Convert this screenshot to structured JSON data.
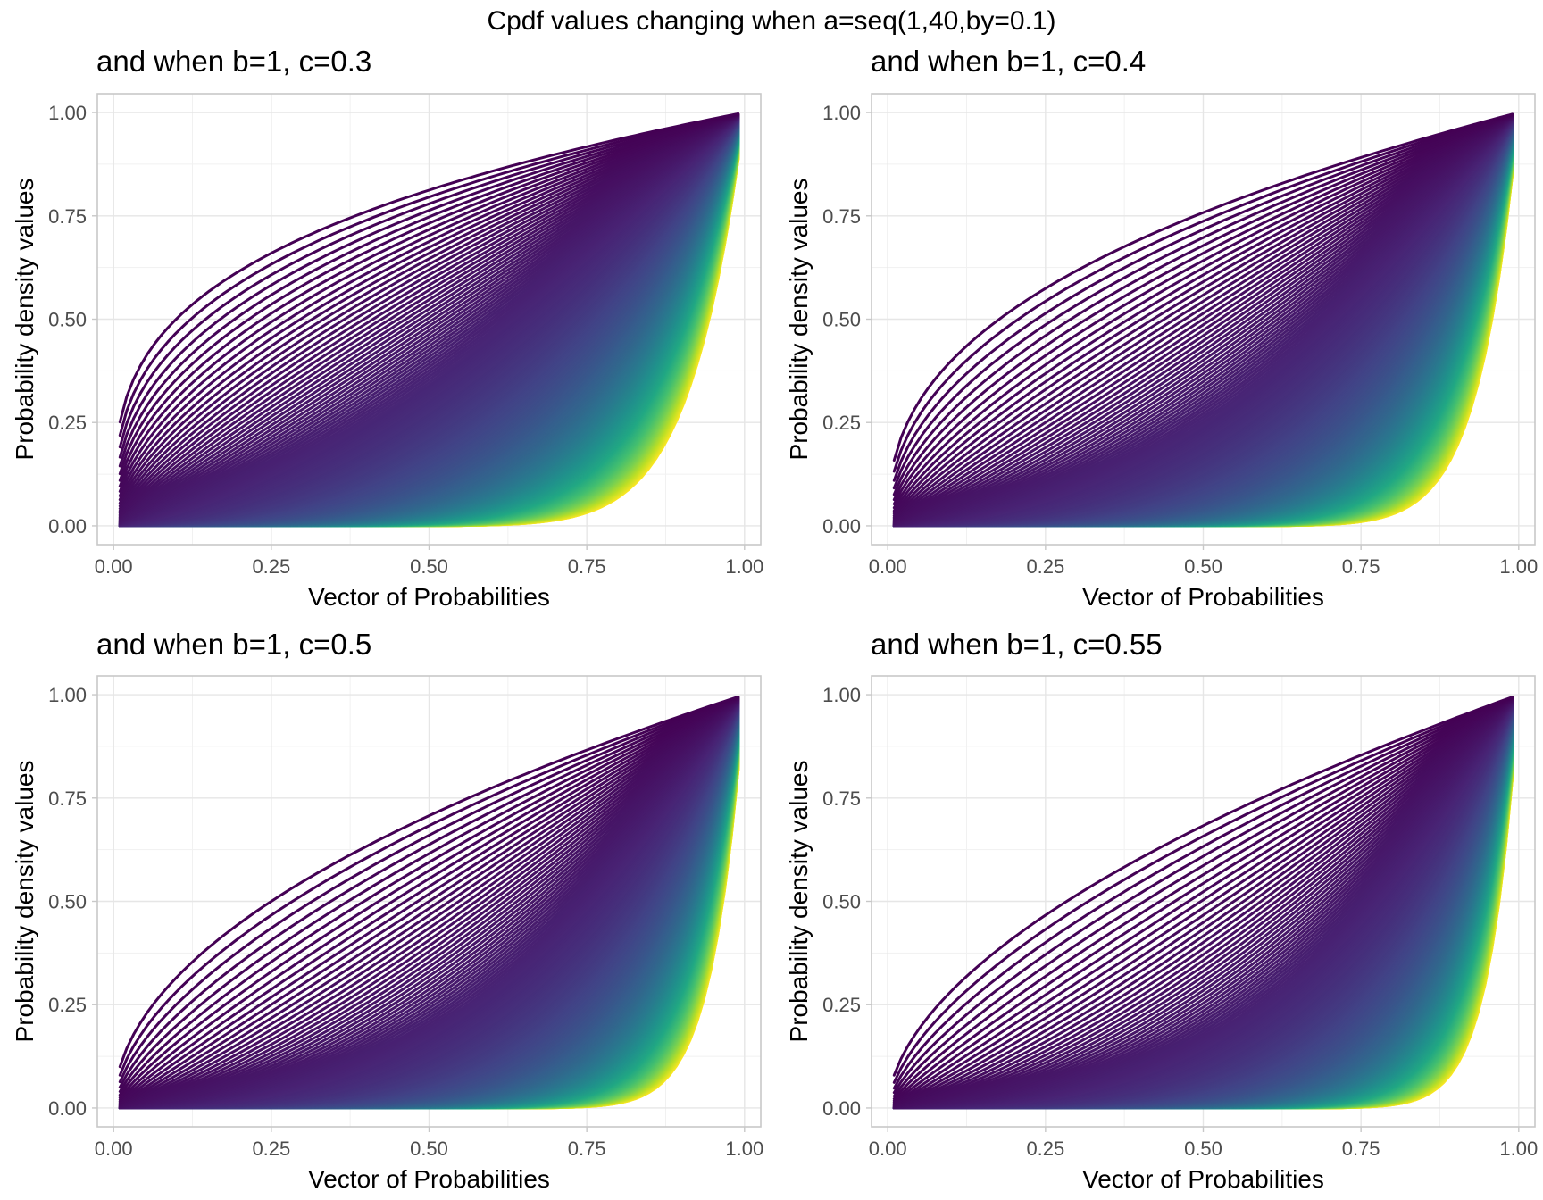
{
  "figure": {
    "title": "Cpdf values changing when a=seq(1,40,by=0.1)"
  },
  "colors": {
    "palette": "viridis",
    "low": "#440154",
    "mid": "#21908C",
    "high": "#FDE725",
    "grid": "#e6e6e6",
    "border": "#c8c8c8",
    "tick_text": "#4d4d4d"
  },
  "chart_data": [
    {
      "type": "line",
      "title": "and when b=1, c=0.3",
      "xlabel": "Vector of Probabilities",
      "ylabel": "Probability density values",
      "xlim": [
        0,
        1
      ],
      "ylim": [
        0,
        1
      ],
      "x_ticks": [
        "0.00",
        "0.25",
        "0.50",
        "0.75",
        "1.00"
      ],
      "y_ticks": [
        "0.00",
        "0.25",
        "0.50",
        "0.75",
        "1.00"
      ],
      "grid": true,
      "x_range": [
        0.01,
        0.99
      ],
      "a_values": {
        "from": 1,
        "to": 40,
        "by": 0.1
      },
      "b": 1,
      "c": 0.3,
      "series_count": 391
    },
    {
      "type": "line",
      "title": "and when b=1, c=0.4",
      "xlabel": "Vector of Probabilities",
      "ylabel": "Probability density values",
      "xlim": [
        0,
        1
      ],
      "ylim": [
        0,
        1
      ],
      "x_ticks": [
        "0.00",
        "0.25",
        "0.50",
        "0.75",
        "1.00"
      ],
      "y_ticks": [
        "0.00",
        "0.25",
        "0.50",
        "0.75",
        "1.00"
      ],
      "grid": true,
      "x_range": [
        0.01,
        0.99
      ],
      "a_values": {
        "from": 1,
        "to": 40,
        "by": 0.1
      },
      "b": 1,
      "c": 0.4,
      "series_count": 391
    },
    {
      "type": "line",
      "title": "and when b=1, c=0.5",
      "xlabel": "Vector of Probabilities",
      "ylabel": "Probability density values",
      "xlim": [
        0,
        1
      ],
      "ylim": [
        0,
        1
      ],
      "x_ticks": [
        "0.00",
        "0.25",
        "0.50",
        "0.75",
        "1.00"
      ],
      "y_ticks": [
        "0.00",
        "0.25",
        "0.50",
        "0.75",
        "1.00"
      ],
      "grid": true,
      "x_range": [
        0.01,
        0.99
      ],
      "a_values": {
        "from": 1,
        "to": 40,
        "by": 0.1
      },
      "b": 1,
      "c": 0.5,
      "series_count": 391
    },
    {
      "type": "line",
      "title": "and when b=1, c=0.55",
      "xlabel": "Vector of Probabilities",
      "ylabel": "Probability density values",
      "xlim": [
        0,
        1
      ],
      "ylim": [
        0,
        1
      ],
      "x_ticks": [
        "0.00",
        "0.25",
        "0.50",
        "0.75",
        "1.00"
      ],
      "y_ticks": [
        "0.00",
        "0.25",
        "0.50",
        "0.75",
        "1.00"
      ],
      "grid": true,
      "x_range": [
        0.01,
        0.99
      ],
      "a_values": {
        "from": 1,
        "to": 40,
        "by": 0.1
      },
      "b": 1,
      "c": 0.55,
      "series_count": 391
    }
  ]
}
